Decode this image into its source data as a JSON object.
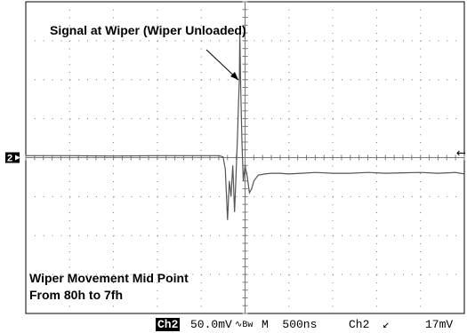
{
  "chart_data": {
    "type": "line",
    "title": "",
    "xlabel": "",
    "ylabel": "",
    "divisions": {
      "x": 10,
      "y": 8
    },
    "xlim": [
      0,
      10
    ],
    "ylim": [
      -4,
      4
    ],
    "annotations": [
      {
        "text": "Signal at Wiper (Wiper Unloaded)",
        "arrow_to": [
          4.87,
          3.2
        ]
      },
      {
        "text": "Wiper Movement Mid Point",
        "line": 1
      },
      {
        "text": "From 80h to 7fh",
        "line": 2
      }
    ],
    "markers": {
      "channel_ground": "2",
      "trigger_level": "←"
    },
    "series": [
      {
        "x": [
          0,
          1,
          2,
          3,
          3.8,
          4.4,
          4.5,
          4.55,
          4.6,
          4.64,
          4.68,
          4.72,
          4.76,
          4.8,
          4.83,
          4.85,
          4.87,
          4.88,
          4.9,
          4.93,
          4.96,
          5.0,
          5.05,
          5.1,
          5.15,
          5.2,
          5.3,
          5.45,
          5.6,
          5.8,
          6.0,
          6.3,
          6.6,
          7.0,
          7.4,
          7.8,
          8.2,
          8.6,
          9.0,
          9.4,
          9.8,
          10.0
        ],
        "y": [
          0.05,
          0.05,
          0.04,
          0.05,
          0.05,
          0.05,
          0.02,
          -0.3,
          -1.6,
          -0.6,
          -1.0,
          -0.2,
          -1.4,
          -0.3,
          0.6,
          1.4,
          2.0,
          3.25,
          1.8,
          0.4,
          -0.6,
          -0.2,
          -0.5,
          -0.9,
          -0.8,
          -0.6,
          -0.45,
          -0.42,
          -0.4,
          -0.4,
          -0.42,
          -0.4,
          -0.38,
          -0.4,
          -0.4,
          -0.38,
          -0.4,
          -0.39,
          -0.38,
          -0.4,
          -0.38,
          -0.42
        ]
      }
    ]
  },
  "status_bar": {
    "channel": "Ch2",
    "scale": "50.0mV",
    "bandwidth": "∿Bw",
    "timebase": "M  500ns",
    "trigger_source": "Ch2",
    "trigger_slope": "↙",
    "trigger_level": "17mV"
  },
  "colors": {
    "trace": "#555555",
    "grid": "#777777",
    "frame": "#000000"
  }
}
